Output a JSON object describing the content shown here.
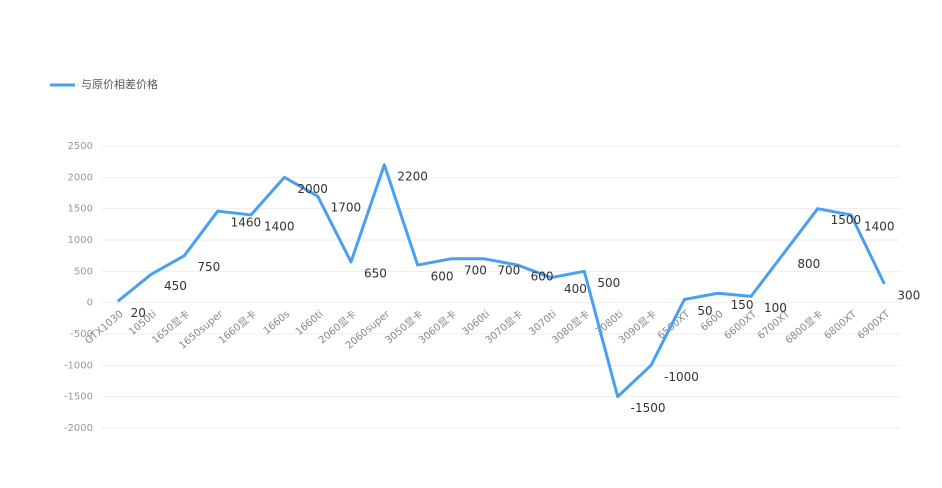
{
  "chart_data": {
    "type": "line",
    "categories": [
      "GTX1030",
      "1050ti",
      "1650显卡",
      "1650super",
      "1660显卡",
      "1660s",
      "1660ti",
      "2060显卡",
      "2060super",
      "3050显卡",
      "3060显卡",
      "3060ti",
      "3070显卡",
      "3070ti",
      "3080显卡",
      "3080ti",
      "3090显卡",
      "6500XT",
      "6600",
      "6600XT",
      "6700XT",
      "6800显卡",
      "6800XT",
      "6900XT"
    ],
    "series": [
      {
        "name": "与原价相差价格",
        "color": "#4a9ff0",
        "values": [
          20,
          450,
          750,
          1460,
          1400,
          2000,
          1700,
          650,
          2200,
          600,
          700,
          700,
          600,
          400,
          500,
          -1500,
          -1000,
          50,
          150,
          100,
          800,
          1500,
          1400,
          300
        ]
      }
    ],
    "ylim": [
      -2000,
      2500
    ],
    "yticks": [
      -2000,
      -1500,
      -1000,
      -500,
      0,
      500,
      1000,
      1500,
      2000,
      2500
    ],
    "grid": true,
    "legend": "top-left"
  }
}
